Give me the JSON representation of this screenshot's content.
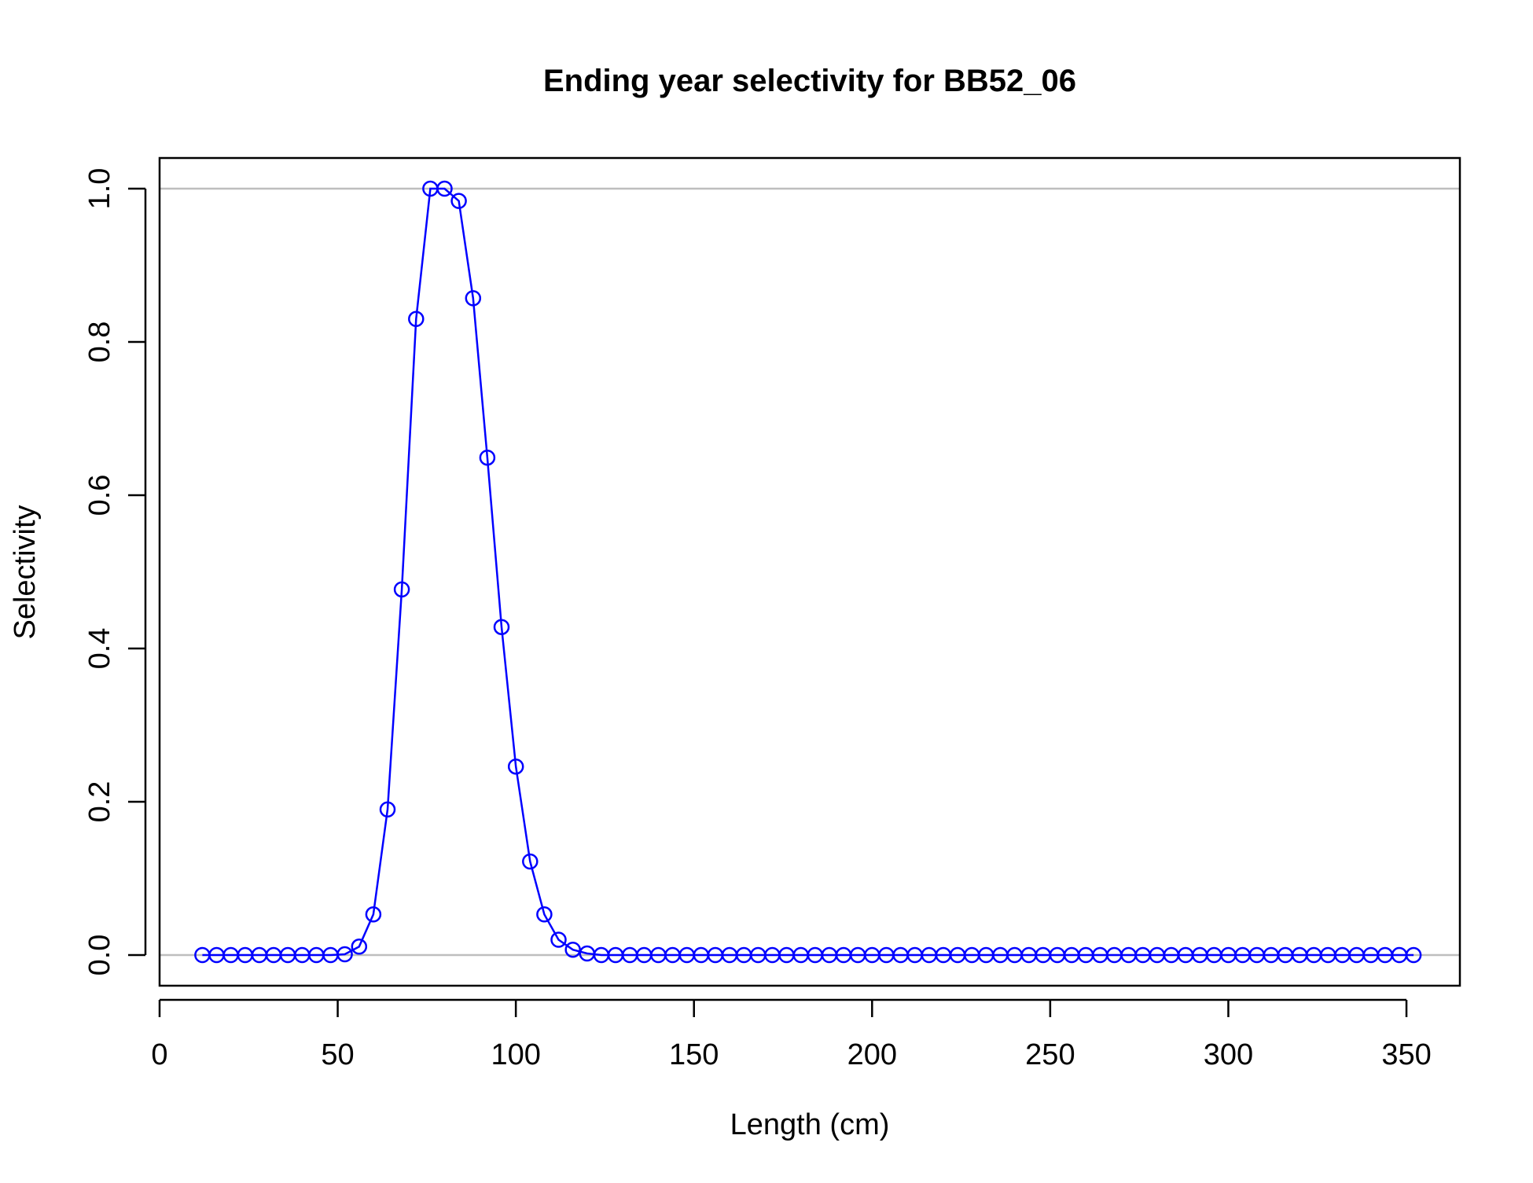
{
  "chart_data": {
    "type": "line",
    "title": "Ending year selectivity for BB52_06",
    "xlabel": "Length (cm)",
    "ylabel": "Selectivity",
    "xlim": [
      0,
      365
    ],
    "ylim": [
      -0.04,
      1.04
    ],
    "x_ticks": [
      0,
      50,
      100,
      150,
      200,
      250,
      300,
      350
    ],
    "y_ticks": [
      0.0,
      0.2,
      0.4,
      0.6,
      0.8,
      1.0
    ],
    "x_tick_labels": [
      "0",
      "50",
      "100",
      "150",
      "200",
      "250",
      "300",
      "350"
    ],
    "y_tick_labels": [
      "0.0",
      "0.2",
      "0.4",
      "0.6",
      "0.8",
      "1.0"
    ],
    "reference_lines": [
      0,
      1
    ],
    "grid": false,
    "colors": {
      "series": "#0000ff",
      "reference": "#bebebe",
      "axis": "#000000"
    },
    "series": [
      {
        "marker": "open-circle",
        "x": [
          12,
          16,
          20,
          24,
          28,
          32,
          36,
          40,
          44,
          48,
          52,
          56,
          60,
          64,
          68,
          72,
          76,
          80,
          84,
          88,
          92,
          96,
          100,
          104,
          108,
          112,
          116,
          120,
          124,
          128,
          132,
          136,
          140,
          144,
          148,
          152,
          156,
          160,
          164,
          168,
          172,
          176,
          180,
          184,
          188,
          192,
          196,
          200,
          204,
          208,
          212,
          216,
          220,
          224,
          228,
          232,
          236,
          240,
          244,
          248,
          252,
          256,
          260,
          264,
          268,
          272,
          276,
          280,
          284,
          288,
          292,
          296,
          300,
          304,
          308,
          312,
          316,
          320,
          324,
          328,
          332,
          336,
          340,
          344,
          348,
          352
        ],
        "y": [
          0,
          0,
          0,
          0,
          0,
          0,
          0,
          0,
          0,
          0,
          0.001,
          0.011,
          0.053,
          0.19,
          0.477,
          0.83,
          1.0,
          1.0,
          0.984,
          0.857,
          0.649,
          0.428,
          0.246,
          0.122,
          0.053,
          0.02,
          0.007,
          0.002,
          0,
          0,
          0,
          0,
          0,
          0,
          0,
          0,
          0,
          0,
          0,
          0,
          0,
          0,
          0,
          0,
          0,
          0,
          0,
          0,
          0,
          0,
          0,
          0,
          0,
          0,
          0,
          0,
          0,
          0,
          0,
          0,
          0,
          0,
          0,
          0,
          0,
          0,
          0,
          0,
          0,
          0,
          0,
          0,
          0,
          0,
          0,
          0,
          0,
          0,
          0,
          0,
          0,
          0,
          0,
          0,
          0,
          0
        ]
      }
    ]
  }
}
